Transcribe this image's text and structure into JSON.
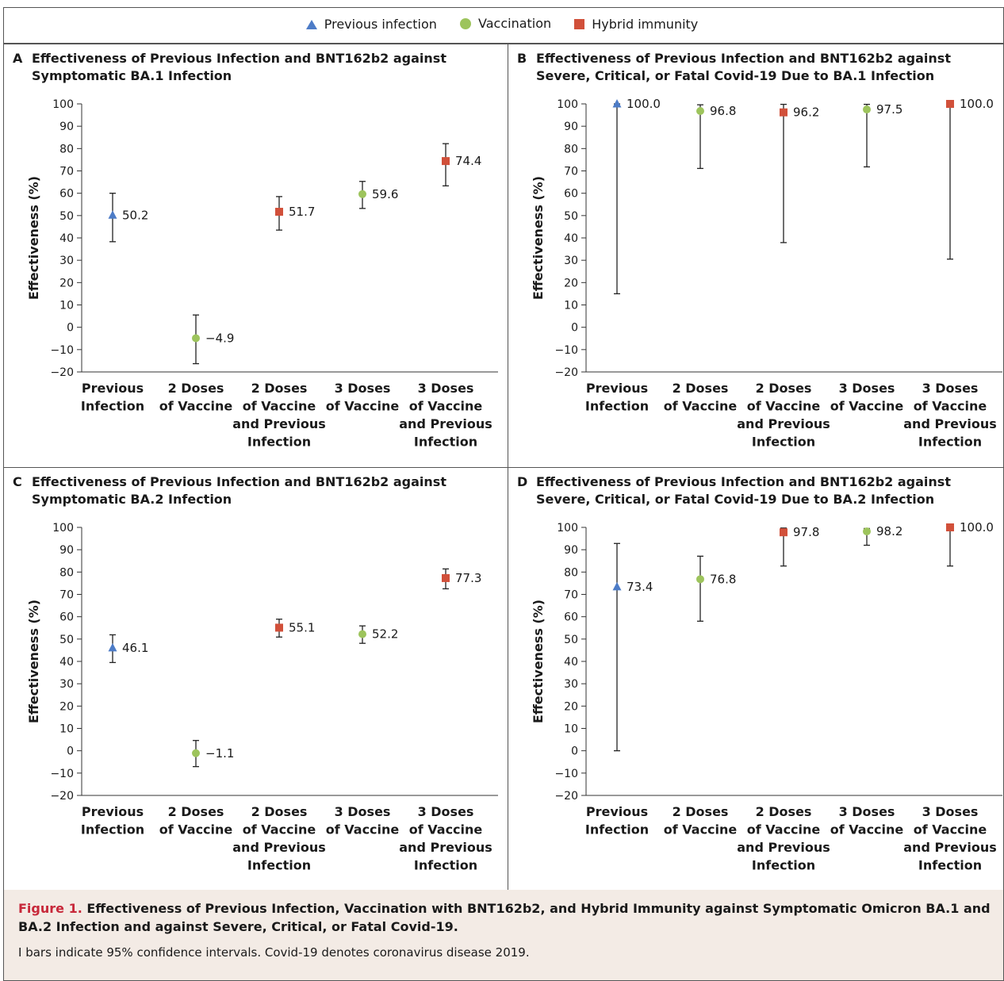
{
  "legend": [
    {
      "label": "Previous infection",
      "marker": "triangle",
      "color": "#4d7cc7",
      "icon": "triangle-marker-icon"
    },
    {
      "label": "Vaccination",
      "marker": "circle",
      "color": "#9dc45c",
      "icon": "circle-marker-icon"
    },
    {
      "label": "Hybrid immunity",
      "marker": "square",
      "color": "#d1503a",
      "icon": "square-marker-icon"
    }
  ],
  "caption": {
    "figure_label": "Figure 1.",
    "title": "Effectiveness of Previous Infection, Vaccination with BNT162b2, and Hybrid Immunity against Symptomatic Omicron BA.1 and BA.2 Infection and against Severe, Critical, or Fatal Covid-19.",
    "note": "I bars indicate 95% confidence intervals. Covid-19 denotes coronavirus disease 2019."
  },
  "chart_data": [
    {
      "id": "A",
      "type": "scatter",
      "title": "Effectiveness of Previous Infection and BNT162b2 against\nSymptomatic BA.1 Infection",
      "ylabel": "Effectiveness (%)",
      "ylim": [
        -20,
        100
      ],
      "yticks": [
        "100",
        "90",
        "80",
        "70",
        "60",
        "50",
        "40",
        "30",
        "20",
        "10",
        "0",
        "−10",
        "−20"
      ],
      "categories": [
        "Previous\nInfection",
        "2 Doses\nof Vaccine",
        "2 Doses\nof Vaccine\nand Previous\nInfection",
        "3 Doses\nof Vaccine",
        "3 Doses\nof Vaccine\nand Previous\nInfection"
      ],
      "points": [
        {
          "value": 50.2,
          "label": "50.2",
          "low": 38.3,
          "high": 60.0,
          "group": "Previous infection"
        },
        {
          "value": -4.9,
          "label": "−4.9",
          "low": -16.3,
          "high": 5.5,
          "group": "Vaccination"
        },
        {
          "value": 51.7,
          "label": "51.7",
          "low": 43.5,
          "high": 58.5,
          "group": "Hybrid immunity"
        },
        {
          "value": 59.6,
          "label": "59.6",
          "low": 53.2,
          "high": 65.3,
          "group": "Vaccination"
        },
        {
          "value": 74.4,
          "label": "74.4",
          "low": 63.3,
          "high": 82.2,
          "group": "Hybrid immunity"
        }
      ]
    },
    {
      "id": "B",
      "type": "scatter",
      "title": "Effectiveness of Previous Infection and BNT162b2 against\nSevere, Critical, or Fatal Covid-19 Due to BA.1 Infection",
      "ylabel": "Effectiveness (%)",
      "ylim": [
        -20,
        100
      ],
      "yticks": [
        "100",
        "90",
        "80",
        "70",
        "60",
        "50",
        "40",
        "30",
        "20",
        "10",
        "0",
        "−10",
        "−20"
      ],
      "categories": [
        "Previous\nInfection",
        "2 Doses\nof Vaccine",
        "2 Doses\nof Vaccine\nand Previous\nInfection",
        "3 Doses\nof Vaccine",
        "3 Doses\nof Vaccine\nand Previous\nInfection"
      ],
      "points": [
        {
          "value": 100.0,
          "label": "100.0",
          "low": 15.0,
          "high": 100.0,
          "group": "Previous infection"
        },
        {
          "value": 96.8,
          "label": "96.8",
          "low": 71.1,
          "high": 99.6,
          "group": "Vaccination"
        },
        {
          "value": 96.2,
          "label": "96.2",
          "low": 37.9,
          "high": 99.8,
          "group": "Hybrid immunity"
        },
        {
          "value": 97.5,
          "label": "97.5",
          "low": 71.8,
          "high": 99.8,
          "group": "Vaccination"
        },
        {
          "value": 100.0,
          "label": "100.0",
          "low": 30.5,
          "high": 100.0,
          "group": "Hybrid immunity"
        }
      ]
    },
    {
      "id": "C",
      "type": "scatter",
      "title": "Effectiveness of Previous Infection and BNT162b2 against\nSymptomatic BA.2 Infection",
      "ylabel": "Effectiveness (%)",
      "ylim": [
        -20,
        100
      ],
      "yticks": [
        "100",
        "90",
        "80",
        "70",
        "60",
        "50",
        "40",
        "30",
        "20",
        "10",
        "0",
        "−10",
        "−20"
      ],
      "categories": [
        "Previous\nInfection",
        "2 Doses\nof Vaccine",
        "2 Doses\nof Vaccine\nand Previous\nInfection",
        "3 Doses\nof Vaccine",
        "3 Doses\nof Vaccine\nand Previous\nInfection"
      ],
      "points": [
        {
          "value": 46.1,
          "label": "46.1",
          "low": 39.5,
          "high": 51.9,
          "group": "Previous infection"
        },
        {
          "value": -1.1,
          "label": "−1.1",
          "low": -7.1,
          "high": 4.6,
          "group": "Vaccination"
        },
        {
          "value": 55.1,
          "label": "55.1",
          "low": 50.9,
          "high": 58.9,
          "group": "Hybrid immunity"
        },
        {
          "value": 52.2,
          "label": "52.2",
          "low": 48.1,
          "high": 55.9,
          "group": "Vaccination"
        },
        {
          "value": 77.3,
          "label": "77.3",
          "low": 72.5,
          "high": 81.4,
          "group": "Hybrid immunity"
        }
      ]
    },
    {
      "id": "D",
      "type": "scatter",
      "title": "Effectiveness of Previous Infection and BNT162b2 against\nSevere, Critical, or Fatal Covid-19 Due to BA.2 Infection",
      "ylabel": "Effectiveness (%)",
      "ylim": [
        -20,
        100
      ],
      "yticks": [
        "100",
        "90",
        "80",
        "70",
        "60",
        "50",
        "40",
        "30",
        "20",
        "10",
        "0",
        "−10",
        "−20"
      ],
      "categories": [
        "Previous\nInfection",
        "2 Doses\nof Vaccine",
        "2 Doses\nof Vaccine\nand Previous\nInfection",
        "3 Doses\nof Vaccine",
        "3 Doses\nof Vaccine\nand Previous\nInfection"
      ],
      "points": [
        {
          "value": 73.4,
          "label": "73.4",
          "low": 0.0,
          "high": 92.8,
          "group": "Previous infection"
        },
        {
          "value": 76.8,
          "label": "76.8",
          "low": 58.0,
          "high": 87.1,
          "group": "Vaccination"
        },
        {
          "value": 97.8,
          "label": "97.8",
          "low": 82.7,
          "high": 99.7,
          "group": "Hybrid immunity"
        },
        {
          "value": 98.2,
          "label": "98.2",
          "low": 92.0,
          "high": 99.5,
          "group": "Vaccination"
        },
        {
          "value": 100.0,
          "label": "100.0",
          "low": 82.7,
          "high": 100.0,
          "group": "Hybrid immunity"
        }
      ]
    }
  ]
}
